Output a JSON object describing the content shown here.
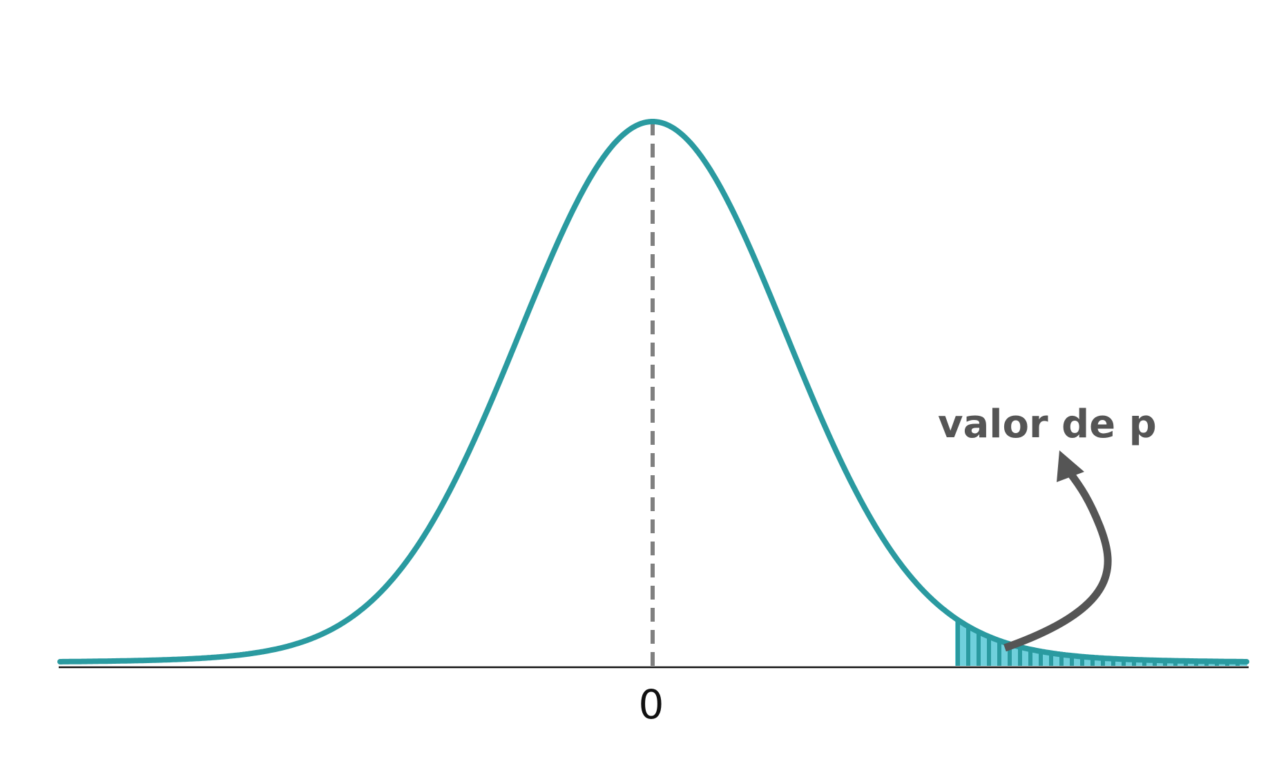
{
  "diagram": {
    "center_label": "0",
    "annotation_label": "valor de p",
    "colors": {
      "curve": "#2a9aa0",
      "shade_fill": "#6fd0dc",
      "shade_stripe": "#2a9aa0",
      "mean_line": "#808080",
      "axis": "#111111",
      "annotation": "#555555",
      "text": "#111111"
    }
  }
}
